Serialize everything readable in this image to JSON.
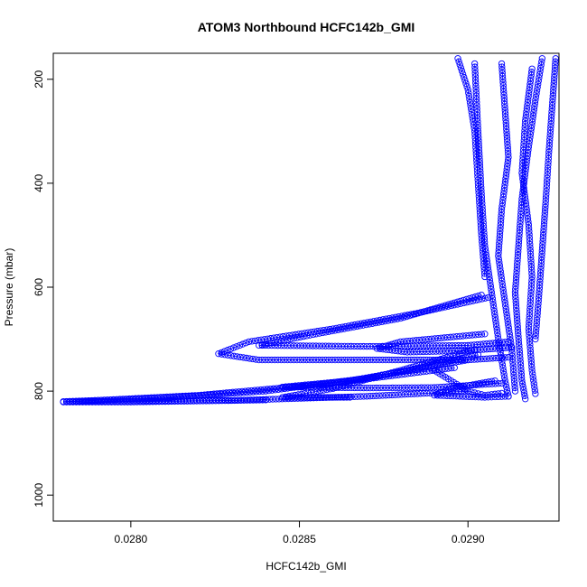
{
  "chart_data": {
    "type": "scatter",
    "title": "ATOM3 Northbound HCFC142b_GMI",
    "xlabel": "HCFC142b_GMI",
    "ylabel": "Pressure (mbar)",
    "xlim": [
      0.02777,
      0.02927
    ],
    "ylim": [
      1050,
      150
    ],
    "y_inverted": true,
    "x_ticks": [
      0.028,
      0.0285,
      0.029
    ],
    "x_tick_labels": [
      "0.0280",
      "0.0285",
      "0.0290"
    ],
    "y_ticks": [
      200,
      400,
      600,
      800,
      1000
    ],
    "y_tick_labels": [
      "200",
      "400",
      "600",
      "800",
      "1000"
    ],
    "marker": "open-circle",
    "color": "#0000ff",
    "grid": false,
    "legend": "none",
    "series": [
      {
        "values": [
          [
            0.02922,
            160
          ],
          [
            0.0292,
            240
          ],
          [
            0.02918,
            330
          ],
          [
            0.02916,
            430
          ],
          [
            0.02915,
            520
          ],
          [
            0.02914,
            610
          ],
          [
            0.02915,
            700
          ],
          [
            0.02916,
            780
          ],
          [
            0.02917,
            815
          ]
        ]
      },
      {
        "values": [
          [
            0.0291,
            170
          ],
          [
            0.02911,
            260
          ],
          [
            0.02912,
            350
          ],
          [
            0.0291,
            450
          ],
          [
            0.02909,
            540
          ],
          [
            0.02911,
            630
          ],
          [
            0.02913,
            720
          ],
          [
            0.02914,
            800
          ]
        ]
      },
      {
        "values": [
          [
            0.02926,
            160
          ],
          [
            0.02925,
            250
          ],
          [
            0.02924,
            340
          ],
          [
            0.02923,
            440
          ],
          [
            0.02922,
            530
          ],
          [
            0.02921,
            620
          ],
          [
            0.0292,
            700
          ]
        ]
      },
      {
        "values": [
          [
            0.02902,
            170
          ],
          [
            0.02903,
            300
          ],
          [
            0.02904,
            420
          ],
          [
            0.02905,
            520
          ],
          [
            0.02907,
            610
          ],
          [
            0.02909,
            700
          ],
          [
            0.02911,
            780
          ],
          [
            0.02912,
            810
          ]
        ]
      },
      {
        "values": [
          [
            0.02897,
            160
          ],
          [
            0.029,
            220
          ],
          [
            0.02902,
            300
          ],
          [
            0.02903,
            400
          ],
          [
            0.02904,
            500
          ],
          [
            0.02905,
            580
          ]
        ]
      },
      {
        "values": [
          [
            0.02919,
            180
          ],
          [
            0.02917,
            280
          ],
          [
            0.02916,
            380
          ],
          [
            0.02918,
            480
          ],
          [
            0.02919,
            580
          ],
          [
            0.02918,
            680
          ],
          [
            0.02919,
            760
          ],
          [
            0.0292,
            805
          ]
        ]
      },
      {
        "values": [
          [
            0.02906,
            620
          ],
          [
            0.02885,
            650
          ],
          [
            0.0286,
            680
          ],
          [
            0.02835,
            705
          ],
          [
            0.02826,
            728
          ],
          [
            0.02838,
            740
          ],
          [
            0.0287,
            740
          ],
          [
            0.029,
            740
          ],
          [
            0.02912,
            735
          ]
        ]
      },
      {
        "values": [
          [
            0.02904,
            615
          ],
          [
            0.0288,
            660
          ],
          [
            0.02855,
            690
          ],
          [
            0.02838,
            712
          ],
          [
            0.0287,
            714
          ],
          [
            0.029,
            712
          ],
          [
            0.02912,
            705
          ]
        ]
      },
      {
        "values": [
          [
            0.02905,
            690
          ],
          [
            0.0288,
            705
          ],
          [
            0.02873,
            718
          ],
          [
            0.02882,
            725
          ],
          [
            0.029,
            722
          ],
          [
            0.02913,
            716
          ]
        ]
      },
      {
        "values": [
          [
            0.02903,
            730
          ],
          [
            0.02882,
            760
          ],
          [
            0.02865,
            780
          ],
          [
            0.02845,
            792
          ],
          [
            0.0287,
            794
          ],
          [
            0.0289,
            793
          ],
          [
            0.0291,
            785
          ]
        ]
      },
      {
        "values": [
          [
            0.02902,
            720
          ],
          [
            0.0288,
            760
          ],
          [
            0.0286,
            795
          ],
          [
            0.02845,
            812
          ],
          [
            0.02865,
            812
          ]
        ]
      },
      {
        "values": [
          [
            0.029,
            740
          ],
          [
            0.0287,
            775
          ],
          [
            0.0284,
            800
          ],
          [
            0.0281,
            813
          ],
          [
            0.0278,
            820
          ],
          [
            0.0283,
            818
          ],
          [
            0.0287,
            810
          ],
          [
            0.029,
            800
          ]
        ]
      },
      {
        "values": [
          [
            0.02896,
            755
          ],
          [
            0.0286,
            785
          ],
          [
            0.0282,
            808
          ],
          [
            0.0278,
            821
          ],
          [
            0.028,
            821
          ],
          [
            0.0284,
            817
          ]
        ]
      },
      {
        "values": [
          [
            0.0289,
            760
          ],
          [
            0.02895,
            780
          ],
          [
            0.029,
            800
          ],
          [
            0.02905,
            808
          ],
          [
            0.0291,
            804
          ]
        ]
      },
      {
        "values": [
          [
            0.02908,
            780
          ],
          [
            0.02895,
            795
          ],
          [
            0.0289,
            808
          ],
          [
            0.02905,
            812
          ],
          [
            0.02912,
            810
          ]
        ]
      }
    ]
  }
}
